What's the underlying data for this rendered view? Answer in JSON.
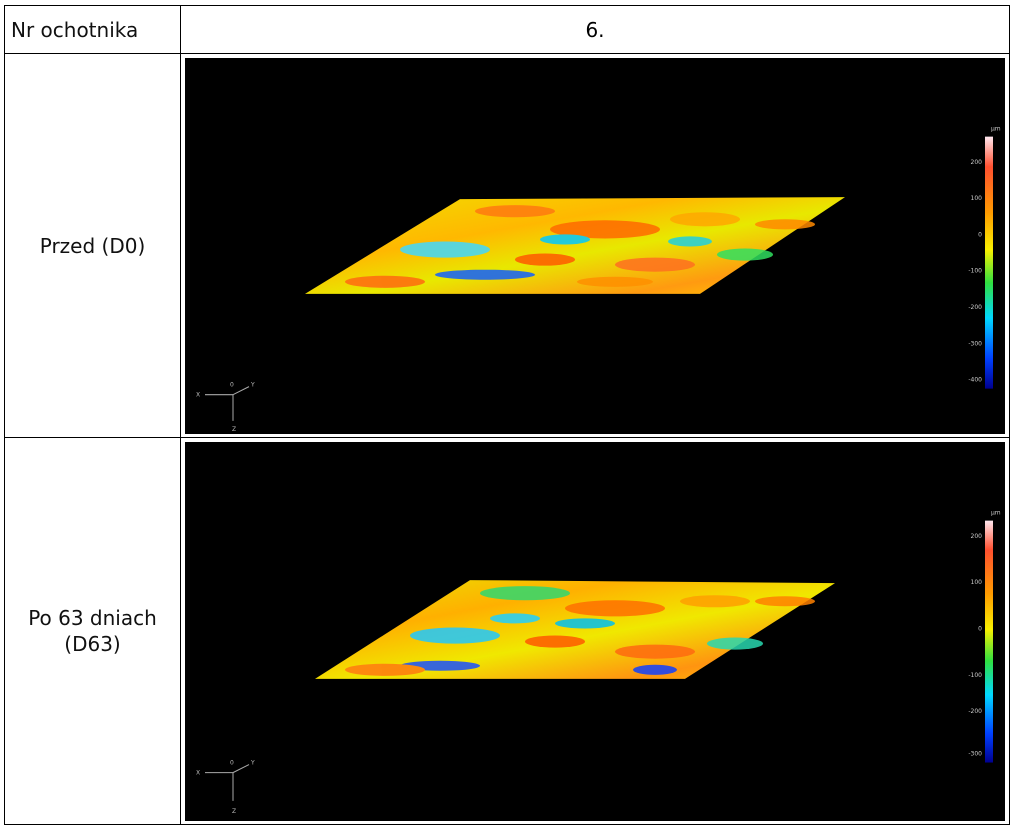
{
  "header": {
    "label": "Nr ochotnika",
    "value": "6."
  },
  "rows": [
    {
      "label": "Przed (D0)",
      "scale": {
        "unit": "µm",
        "ticks": [
          "200",
          "100",
          "0",
          "-100",
          "-200",
          "-300",
          "-400"
        ]
      },
      "axes": {
        "origin": "0",
        "x": "X",
        "y": "Y",
        "z": "Z"
      }
    },
    {
      "label_line1": "Po 63 dniach",
      "label_line2": "(D63)",
      "scale": {
        "unit": "µm",
        "ticks": [
          "200",
          "100",
          "0",
          "-100",
          "-200",
          "-300"
        ]
      },
      "axes": {
        "origin": "0",
        "x": "X",
        "y": "Y",
        "z": "Z"
      }
    }
  ],
  "colors": {
    "background": "#000000",
    "surface_high": "#ff3b10",
    "surface_mid": "#f5f000",
    "surface_low": "#00d0ff",
    "surface_lowest": "#0010c0"
  }
}
